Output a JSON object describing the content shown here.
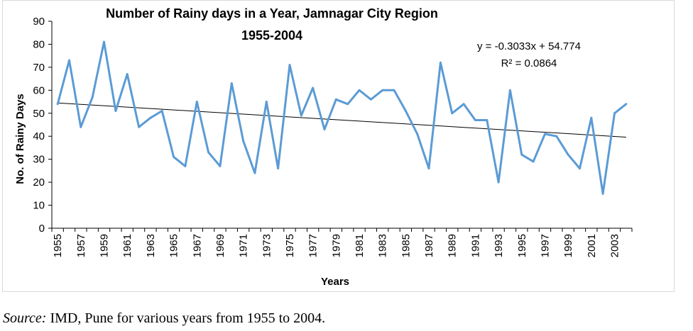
{
  "chart_data": {
    "type": "line",
    "title_line1": "Number of Rainy days in a Year, Jamnagar City Region",
    "title_line2": "1955-2004",
    "xlabel": "Years",
    "ylabel": "No. of Rainy Days",
    "ylim": [
      0,
      90
    ],
    "y_ticks": [
      "0",
      "10",
      "20",
      "30",
      "40",
      "50",
      "60",
      "70",
      "80",
      "90"
    ],
    "x_tick_labels": [
      "1955",
      "1957",
      "1959",
      "1961",
      "1963",
      "1965",
      "1967",
      "1969",
      "1971",
      "1973",
      "1975",
      "1977",
      "1979",
      "1981",
      "1983",
      "1985",
      "1987",
      "1989",
      "1991",
      "1993",
      "1995",
      "1997",
      "1999",
      "2001",
      "2003"
    ],
    "x": [
      1955,
      1956,
      1957,
      1958,
      1959,
      1960,
      1961,
      1962,
      1963,
      1964,
      1965,
      1966,
      1967,
      1968,
      1969,
      1970,
      1971,
      1972,
      1973,
      1974,
      1975,
      1976,
      1977,
      1978,
      1979,
      1980,
      1981,
      1982,
      1983,
      1984,
      1985,
      1986,
      1987,
      1988,
      1989,
      1990,
      1991,
      1992,
      1993,
      1994,
      1995,
      1996,
      1997,
      1998,
      1999,
      2000,
      2001,
      2002,
      2003,
      2004
    ],
    "series": [
      {
        "values": [
          54,
          73,
          44,
          57,
          81,
          51,
          67,
          44,
          48,
          51,
          31,
          27,
          55,
          33,
          27,
          63,
          38,
          24,
          55,
          26,
          71,
          49,
          61,
          43,
          56,
          54,
          60,
          56,
          60,
          60,
          51,
          41,
          26,
          72,
          50,
          54,
          47,
          47,
          20,
          60,
          32,
          29,
          41,
          40,
          32,
          26,
          48,
          15,
          50,
          54
        ],
        "color": "#5b9bd5"
      }
    ],
    "trendline": {
      "slope": -0.3033,
      "intercept": 54.774,
      "equation_text": "y = -0.3033x + 54.774",
      "r2_text": "R² = 0.0864",
      "color": "#000000"
    },
    "grid": false,
    "legend": "none"
  },
  "source": {
    "label": "Source:",
    "text": " IMD, Pune for various years from 1955 to 2004."
  }
}
